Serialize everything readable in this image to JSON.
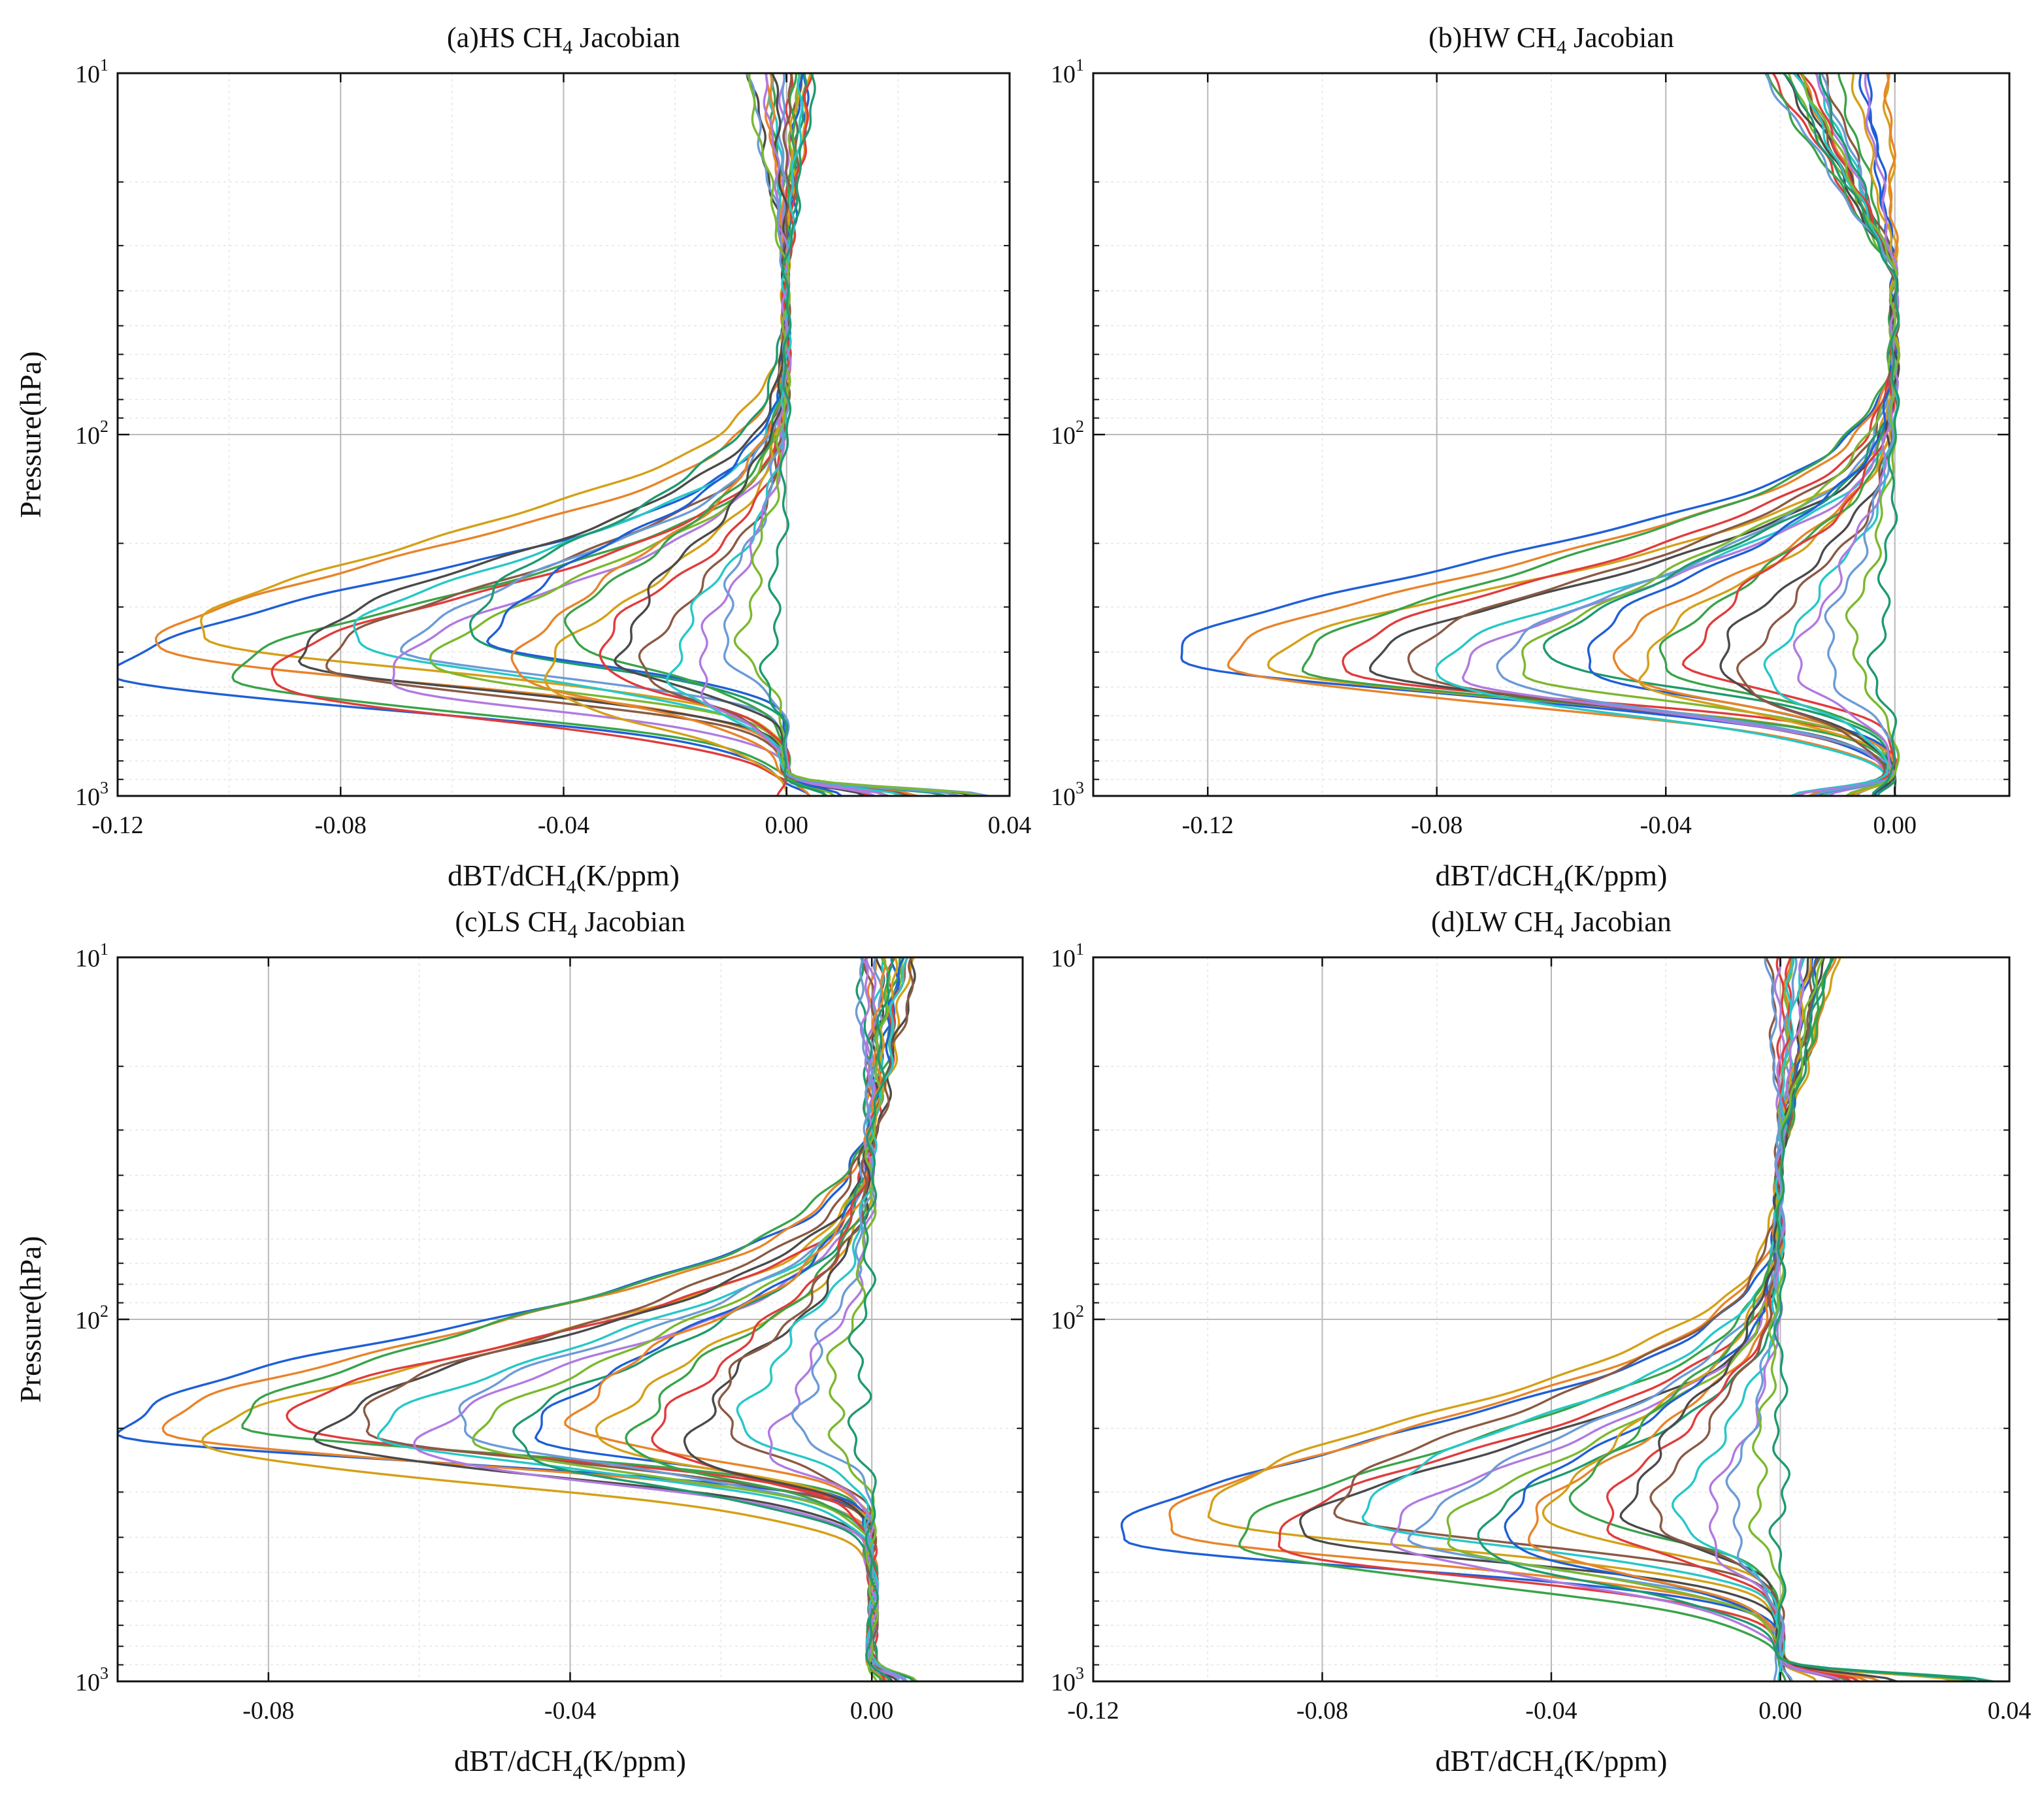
{
  "chart_data": [
    {
      "panel": "a",
      "type": "line",
      "title": "(a)HS CH4 Jacobian",
      "title_parts": [
        "(a)HS CH",
        "4",
        " Jacobian"
      ],
      "xlabel_parts": [
        "dBT/dCH",
        "4",
        "(K/ppm)"
      ],
      "ylabel": "Pressure(hPa)",
      "xlim": [
        -0.12,
        0.04
      ],
      "ylim": [
        1000,
        10
      ],
      "yscale": "log",
      "xticks": [
        -0.12,
        -0.08,
        -0.04,
        0.0,
        0.04
      ],
      "xtick_labels": [
        "-0.12",
        "-0.08",
        "-0.04",
        "0.00",
        "0.04"
      ],
      "ytick_exponents": [
        "1",
        "2",
        "3"
      ],
      "ytick_base": "10",
      "grid": true,
      "n_series": 24,
      "envelope": {
        "description": "approximate range of profiles",
        "peak_pressure_hPa": [
          290,
          500
        ],
        "peak_value_range": [
          -0.12,
          -0.003
        ],
        "surface_value_range": [
          -0.003,
          0.037
        ],
        "top_value_range": [
          -0.008,
          0.008
        ]
      }
    },
    {
      "panel": "b",
      "type": "line",
      "title": "(b)HW CH4 Jacobian",
      "title_parts": [
        "(b)HW  CH",
        "4",
        " Jacobian"
      ],
      "xlabel_parts": [
        "dBT/dCH",
        "4",
        "(K/ppm)"
      ],
      "ylabel": "",
      "xlim": [
        -0.14,
        0.02
      ],
      "ylim": [
        1000,
        10
      ],
      "yscale": "log",
      "xticks": [
        -0.12,
        -0.08,
        -0.04,
        0.0
      ],
      "xtick_labels": [
        "-0.12",
        "-0.08",
        "-0.04",
        "0.00"
      ],
      "ytick_exponents": [
        "1",
        "2",
        "3"
      ],
      "ytick_base": "10",
      "grid": true,
      "n_series": 24,
      "envelope": {
        "description": "approximate range of profiles",
        "peak_pressure_hPa": [
          380,
          480
        ],
        "peak_value_range": [
          -0.125,
          -0.003
        ],
        "surface_value_range": [
          -0.02,
          0.0
        ],
        "top_value_range": [
          -0.024,
          0.003
        ]
      }
    },
    {
      "panel": "c",
      "type": "line",
      "title": "(c)LS CH4 Jacobian",
      "title_parts": [
        "(c)LS  CH",
        "4",
        " Jacobian"
      ],
      "xlabel_parts": [
        "dBT/dCH",
        "4",
        "(K/ppm)"
      ],
      "ylabel": "Pressure(hPa)",
      "xlim": [
        -0.1,
        0.02
      ],
      "ylim": [
        1000,
        10
      ],
      "yscale": "log",
      "xticks": [
        -0.08,
        -0.04,
        0.0
      ],
      "xtick_labels": [
        "-0.08",
        "-0.04",
        "0.00"
      ],
      "ytick_exponents": [
        "1",
        "2",
        "3"
      ],
      "ytick_base": "10",
      "grid": true,
      "n_series": 24,
      "envelope": {
        "description": "approximate range of profiles",
        "peak_pressure_hPa": [
          165,
          230
        ],
        "peak_value_range": [
          -0.1,
          -0.002
        ],
        "surface_value_range": [
          0.0,
          0.006
        ],
        "top_value_range": [
          -0.002,
          0.006
        ]
      }
    },
    {
      "panel": "d",
      "type": "line",
      "title": "(d)LW CH4 Jacobian",
      "title_parts": [
        "(d)LW  CH",
        "4",
        " Jacobian"
      ],
      "xlabel_parts": [
        "dBT/dCH",
        "4",
        "(K/ppm)"
      ],
      "ylabel": "",
      "xlim": [
        -0.12,
        0.04
      ],
      "ylim": [
        1000,
        10
      ],
      "yscale": "log",
      "xticks": [
        -0.12,
        -0.08,
        -0.04,
        0.0,
        0.04
      ],
      "xtick_labels": [
        "-0.12",
        "-0.08",
        "-0.04",
        "0.00",
        "0.04"
      ],
      "ytick_exponents": [
        "1",
        "2",
        "3"
      ],
      "ytick_base": "10",
      "grid": true,
      "n_series": 24,
      "envelope": {
        "description": "approximate range of profiles",
        "peak_pressure_hPa": [
          280,
          420
        ],
        "peak_value_range": [
          -0.115,
          0.0
        ],
        "surface_value_range": [
          -0.003,
          0.04
        ],
        "top_value_range": [
          -0.002,
          0.01
        ]
      }
    }
  ],
  "colors": {
    "series": [
      "#1f5fd6",
      "#e8842a",
      "#d4a017",
      "#3aa34a",
      "#e03c3c",
      "#4a4a4a",
      "#8a5a44",
      "#27c7c7",
      "#b07ae0",
      "#6b9bd6",
      "#7cb82f",
      "#1e9a6e"
    ],
    "axis": "#111111",
    "grid_major": "#b8b8b8",
    "grid_minor": "#e6e6e6"
  }
}
